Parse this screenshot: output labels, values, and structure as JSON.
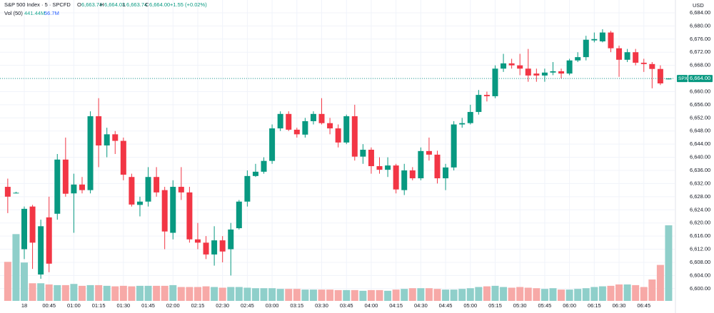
{
  "header": {
    "symbol": "S&P 500 Index · 5 · SPCFD",
    "open_label": "O",
    "open": "6,663.74",
    "high_label": "H",
    "high": "6,664.03",
    "low_label": "L",
    "low": "6,663.74",
    "close_label": "C",
    "close": "6,664.00",
    "change": "+1.55 (+0.02%)",
    "volume_label": "Vol (50)",
    "volume": "441.44M",
    "volume_ma": "56.7M"
  },
  "chart_data": {
    "type": "candlestick",
    "currency": "USD",
    "categories": [
      null,
      null,
      "18",
      null,
      null,
      "00:45",
      null,
      null,
      "01:00",
      null,
      null,
      "01:15",
      null,
      null,
      "01:30",
      null,
      null,
      "01:45",
      null,
      null,
      "02:00",
      null,
      null,
      "02:15",
      null,
      null,
      "02:30",
      null,
      null,
      "02:45",
      null,
      null,
      "03:00",
      null,
      null,
      "03:15",
      null,
      null,
      "03:30",
      null,
      null,
      "03:45",
      null,
      null,
      "04:00",
      null,
      null,
      "04:15",
      null,
      null,
      "04:30",
      null,
      null,
      "04:45",
      null,
      null,
      "05:00",
      null,
      null,
      "05:15",
      null,
      null,
      "05:30",
      null,
      null,
      "05:45",
      null,
      null,
      "06:00",
      null,
      null,
      "06:15",
      null,
      null,
      "06:30",
      null,
      null,
      "06:45",
      null,
      null,
      null
    ],
    "open": [
      6631,
      6629,
      6612,
      6625,
      6604.3,
      6621.7,
      6622.8,
      6639.3,
      6629,
      6631.7,
      6630,
      6652.5,
      6643.6,
      6647,
      6645,
      6634,
      6625.5,
      6626.5,
      6634,
      6630,
      6617,
      6631,
      6629.3,
      6615,
      6614,
      6610.4,
      6614.7,
      6612,
      6618.4,
      6626.5,
      6634.3,
      6635.6,
      6638.9,
      6648.8,
      6653.2,
      6648.4,
      6646.9,
      6651,
      6653.2,
      6650.4,
      6648.8,
      6644.5,
      6652.5,
      6640.2,
      6642.3,
      6637.3,
      6636.2,
      6637.5,
      6630,
      6636,
      6633.6,
      6641.9,
      6640.8,
      6633.6,
      6636.9,
      6650,
      6650.4,
      6653.8,
      6659,
      6658.6,
      6667,
      6668.6,
      6668,
      6667,
      6665.5,
      6664.9,
      6665.8,
      6666.2,
      6665.5,
      6669.5,
      6670.5,
      6675.6,
      6675.3,
      6678,
      6673.2,
      6669.7,
      6672,
      6668.8,
      6668.4,
      6666.9,
      6663.74
    ],
    "high": [
      6633.5,
      6629.5,
      6625,
      6625.5,
      6621,
      6628,
      6641,
      6646,
      6635,
      6634,
      6654,
      6658,
      6649,
      6648,
      6646,
      6635,
      6628,
      6637,
      6637,
      6631,
      6633,
      6637,
      6631,
      6620,
      6616,
      6619,
      6616,
      6620,
      6627,
      6636,
      6638,
      6640,
      6650,
      6654,
      6654,
      6649,
      6652,
      6654,
      6658,
      6652,
      6650,
      6653,
      6656,
      6644,
      6643,
      6640,
      6640,
      6638,
      6638,
      6637,
      6643,
      6646,
      6642,
      6638,
      6651,
      6652,
      6656,
      6660.5,
      6660,
      6668,
      6671.5,
      6670,
      6671.5,
      6673,
      6667,
      6667,
      6669,
      6667,
      6670,
      6672,
      6677,
      6678,
      6679,
      6678.5,
      6674,
      6673,
      6673,
      6670,
      6669,
      6668,
      6664.03
    ],
    "low": [
      6623,
      6629,
      6609,
      6606,
      6603,
      6605,
      6621,
      6628,
      6617,
      6629,
      6629,
      6637,
      6640,
      6641,
      6633,
      6625,
      6622,
      6625,
      6628,
      6612,
      6615,
      6627,
      6614,
      6612,
      6609,
      6607,
      6608,
      6604,
      6618,
      6625,
      6634,
      6635,
      6638,
      6648,
      6648,
      6646,
      6646,
      6650,
      6650,
      6647,
      6643,
      6644,
      6639,
      6638,
      6635,
      6635,
      6634,
      6629,
      6628.5,
      6633,
      6633,
      6639,
      6632,
      6630,
      6636,
      6649,
      6650,
      6653,
      6657,
      6658,
      6666,
      6667,
      6665,
      6663,
      6663,
      6663,
      6665,
      6664,
      6665,
      6669,
      6669.5,
      6675,
      6675,
      6672,
      6664.5,
      6669,
      6668,
      6666,
      6661,
      6662,
      6663.74
    ],
    "close": [
      6628,
      6629.2,
      6624.3,
      6614,
      6619,
      6607.6,
      6639.3,
      6628.9,
      6631.7,
      6630,
      6652.5,
      6643.6,
      6647,
      6645,
      6634.7,
      6625.6,
      6626.5,
      6634,
      6629.3,
      6617.4,
      6631,
      6629.3,
      6615,
      6614,
      6610.4,
      6614.7,
      6611.3,
      6618,
      6626.5,
      6634.3,
      6635.6,
      6638.9,
      6648.8,
      6653.2,
      6648.4,
      6647,
      6651,
      6653.2,
      6650.4,
      6648.8,
      6644.5,
      6652.5,
      6640.2,
      6642.3,
      6637.3,
      6636.2,
      6637.5,
      6630.2,
      6636,
      6633.6,
      6641.9,
      6640.8,
      6633.6,
      6636.9,
      6650,
      6650.4,
      6653.8,
      6659,
      6658.6,
      6667,
      6668.6,
      6668,
      6667,
      6664.9,
      6664.9,
      6665.8,
      6666.2,
      6665.5,
      6669.5,
      6670.5,
      6675.8,
      6676,
      6678,
      6673.2,
      6669.7,
      6672,
      6668.8,
      6668.4,
      6666.9,
      6662.5,
      6664.0
    ],
    "volume": [
      228,
      390,
      224,
      103,
      103,
      96,
      92,
      92,
      99,
      88,
      92,
      92,
      88,
      85,
      88,
      85,
      88,
      88,
      88,
      88,
      92,
      81,
      81,
      81,
      85,
      81,
      77,
      81,
      81,
      77,
      74,
      74,
      74,
      70,
      70,
      70,
      66,
      66,
      66,
      66,
      63,
      63,
      63,
      59,
      63,
      63,
      59,
      66,
      70,
      74,
      74,
      74,
      70,
      66,
      66,
      70,
      74,
      81,
      85,
      88,
      81,
      77,
      81,
      77,
      74,
      70,
      74,
      66,
      66,
      70,
      74,
      81,
      85,
      88,
      96,
      96,
      92,
      81,
      125,
      210,
      441.44
    ],
    "up_color": "#089981",
    "down_color": "#f23645",
    "up_volume_color": "#8fcfca",
    "down_volume_color": "#f7a9a7",
    "ylim": [
      6596.7,
      6687.9
    ],
    "yticks": [
      {
        "value": 6600,
        "label": "6,600.00"
      },
      {
        "value": 6604,
        "label": "6,604.00"
      },
      {
        "value": 6608,
        "label": "6,608.00"
      },
      {
        "value": 6612,
        "label": "6,612.00"
      },
      {
        "value": 6616,
        "label": "6,616.00"
      },
      {
        "value": 6620,
        "label": "6,620.00"
      },
      {
        "value": 6624,
        "label": "6,624.00"
      },
      {
        "value": 6628,
        "label": "6,628.00"
      },
      {
        "value": 6632,
        "label": "6,632.00"
      },
      {
        "value": 6636,
        "label": "6,636.00"
      },
      {
        "value": 6640,
        "label": "6,640.00"
      },
      {
        "value": 6644,
        "label": "6,644.00"
      },
      {
        "value": 6648,
        "label": "6,648.00"
      },
      {
        "value": 6652,
        "label": "6,652.00"
      },
      {
        "value": 6656,
        "label": "6,656.00"
      },
      {
        "value": 6660,
        "label": "6,660.00"
      },
      {
        "value": 6664,
        "label": "6,664.00"
      },
      {
        "value": 6668,
        "label": "6,668.00"
      },
      {
        "value": 6672,
        "label": "6,672.00"
      },
      {
        "value": 6676,
        "label": "6,676.00"
      },
      {
        "value": 6680,
        "label": "6,680.00"
      },
      {
        "value": 6684,
        "label": "6,684.00"
      }
    ],
    "grid": true,
    "last_price": {
      "symbol": "SPX",
      "value": 6664,
      "label": "6,664.00"
    }
  }
}
